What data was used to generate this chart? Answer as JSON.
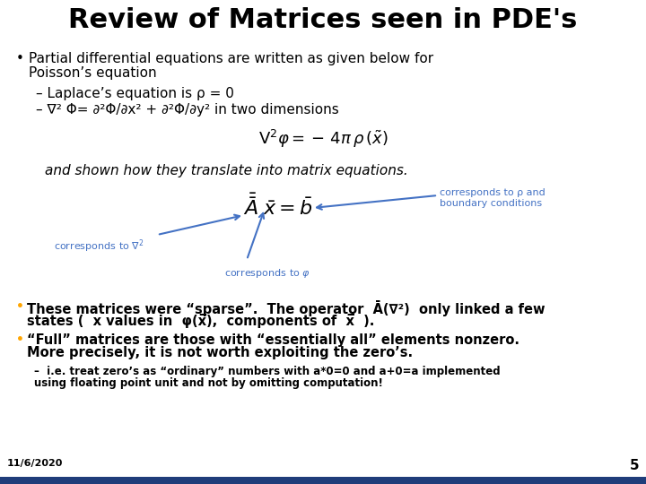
{
  "title": "Review of Matrices seen in PDE's",
  "background_color": "#ffffff",
  "title_color": "#000000",
  "title_fontsize": 22,
  "bottom_bar_color": "#1f3d7a",
  "slide_number": "5",
  "bullet1_text_line1": "Partial differential equations are written as given below for",
  "bullet1_text_line2": "Poisson’s equation",
  "dash1_text": "– Laplace’s equation is ρ = 0",
  "dash2_text": "– ∇² Φ= ∂²Φ/∂x² + ∂²Φ/∂y² in two dimensions",
  "matrix_intro": "and shown how they translate into matrix equations.",
  "label_nabla2": "corresponds to ∇²",
  "label_phi": "corresponds to φ",
  "label_rho_line1": "corresponds to ρ and",
  "label_rho_line2": "boundary conditions",
  "arrow_color": "#4472c4",
  "label_color": "#4472c4",
  "bullet2_line1": "These matrices were “sparse”.  The operator  Ā(∇²)  only linked a few",
  "bullet2_line2": "states (  x values in  φ(x̅),  components of  x̅  ).",
  "bullet3_line1": "“Full” matrices are those with “essentially all” elements nonzero.",
  "bullet3_line2": "More precisely, it is not worth exploiting the zero’s.",
  "subdash_line1": "–  i.e. treat zero’s as “ordinary” numbers with a*0=0 and a+0=a implemented",
  "subdash_line2": "using floating point unit and not by omitting computation!",
  "date_text": "11/6/2020",
  "orange_bullet_color": "#ffa500"
}
